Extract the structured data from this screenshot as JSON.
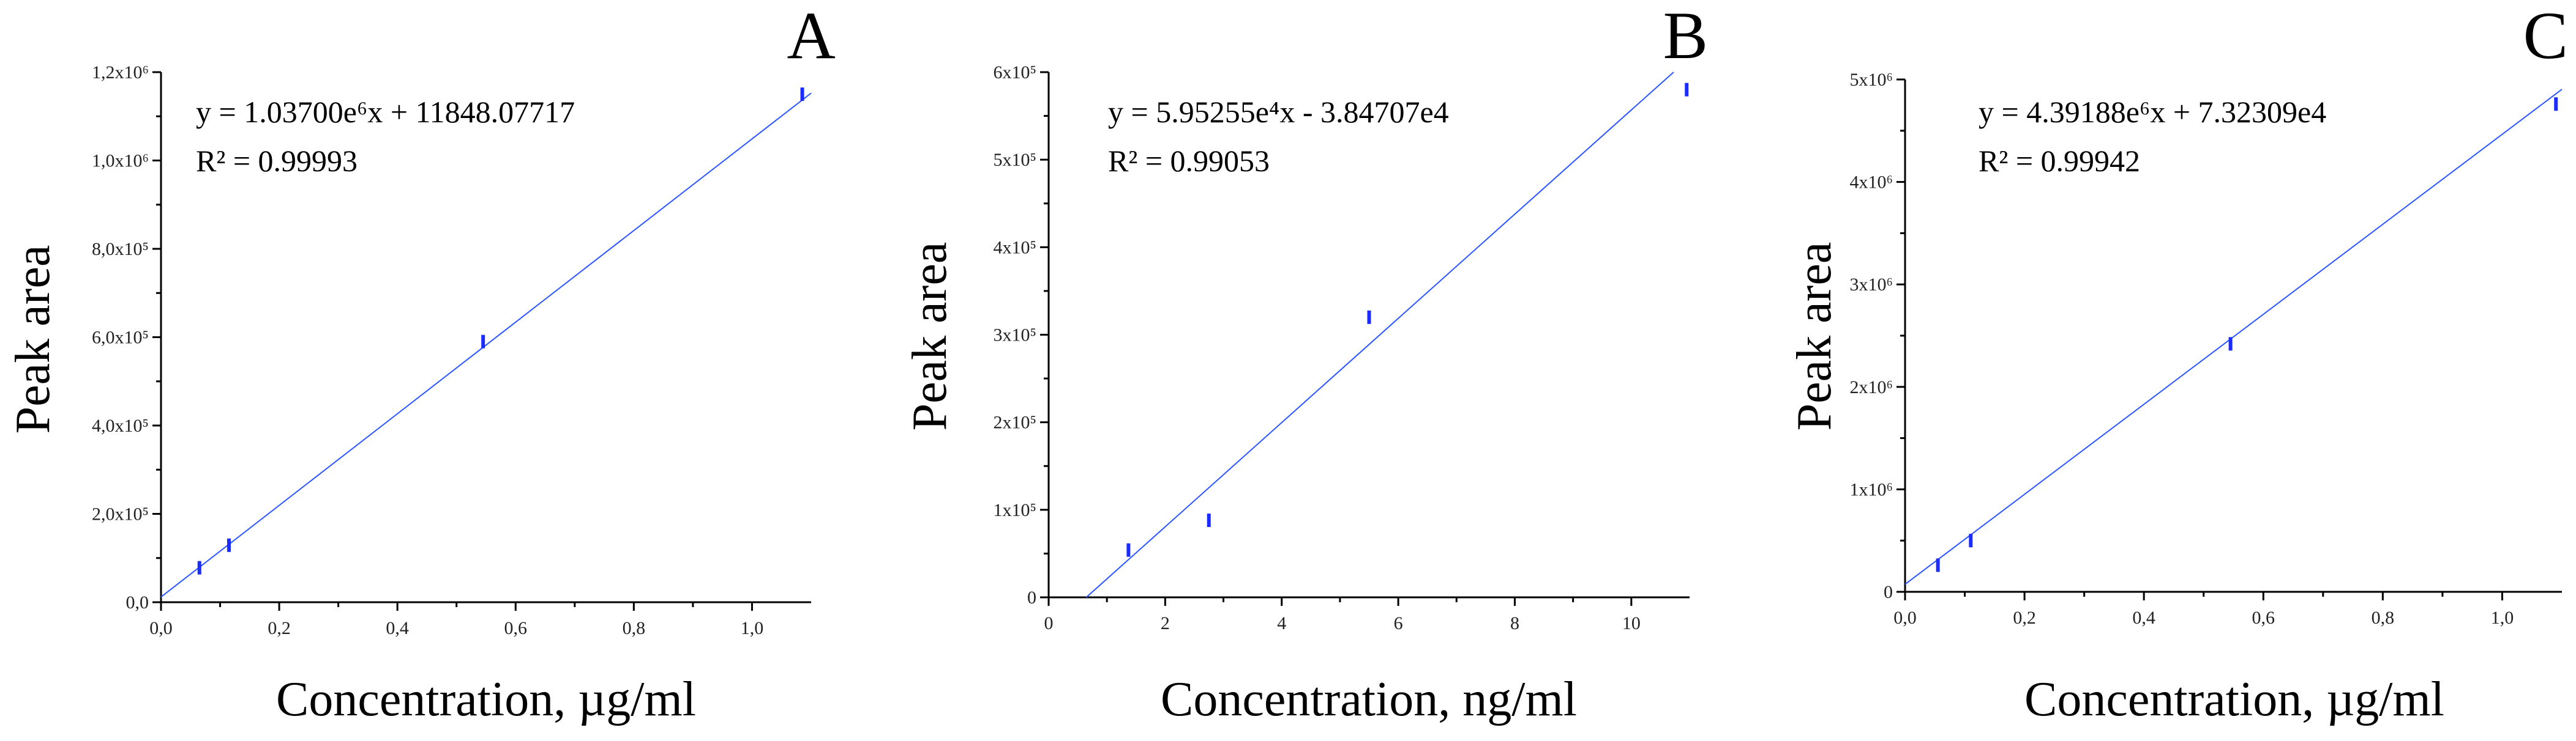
{
  "chart_data": [
    {
      "type": "scatter",
      "panel_label": "A",
      "equation": "y = 1.03700e⁶x + 11848.07717",
      "r_squared": "R² = 0.99993",
      "xlabel": "Concentration, µg/ml",
      "ylabel": "Peak area",
      "xlim": [
        0,
        1.1
      ],
      "ylim": [
        0,
        1200000
      ],
      "x_ticks": [
        0,
        0.2,
        0.4,
        0.6,
        0.8,
        1.0
      ],
      "x_tick_labels": [
        "0,0",
        "0,2",
        "0,4",
        "0,6",
        "0,8",
        "1,0"
      ],
      "y_ticks": [
        0,
        200000,
        400000,
        600000,
        800000,
        1000000,
        1200000
      ],
      "y_tick_labels": [
        "0,0",
        "2,0x10⁵",
        "4,0x10⁵",
        "6,0x10⁵",
        "8,0x10⁵",
        "1,0x10⁶",
        "1,2x10⁶"
      ],
      "fit": {
        "slope": 1037000,
        "intercept": 11848.07717
      },
      "points": [
        {
          "x": 0.065,
          "y": 78000
        },
        {
          "x": 0.115,
          "y": 129000
        },
        {
          "x": 0.545,
          "y": 590000
        },
        {
          "x": 1.085,
          "y": 1150000
        }
      ],
      "grid": false
    },
    {
      "type": "scatter",
      "panel_label": "B",
      "equation": "y = 5.95255e⁴x - 3.84707e4",
      "r_squared": "R² = 0.99053",
      "xlabel": "Concentration, ng/ml",
      "ylabel": "Peak area",
      "xlim": [
        0,
        11
      ],
      "ylim": [
        0,
        600000
      ],
      "x_ticks": [
        0,
        2,
        4,
        6,
        8,
        10
      ],
      "x_tick_labels": [
        "0",
        "2",
        "4",
        "6",
        "8",
        "10"
      ],
      "y_ticks": [
        0,
        100000,
        200000,
        300000,
        400000,
        500000,
        600000
      ],
      "y_tick_labels": [
        "0",
        "1x10⁵",
        "2x10⁵",
        "3x10⁵",
        "4x10⁵",
        "5x10⁵",
        "6x10⁵"
      ],
      "fit": {
        "slope": 59525.5,
        "intercept": -38470.7
      },
      "points": [
        {
          "x": 1.37,
          "y": 54000
        },
        {
          "x": 2.75,
          "y": 88000
        },
        {
          "x": 5.5,
          "y": 320000
        },
        {
          "x": 10.95,
          "y": 580000
        }
      ],
      "grid": false
    },
    {
      "type": "scatter",
      "panel_label": "C",
      "equation": "y = 4.39188e⁶x + 7.32309e4",
      "r_squared": "R² = 0.99942",
      "xlabel": "Concentration, µg/ml",
      "ylabel": "Peak area",
      "xlim": [
        0,
        1.1
      ],
      "ylim": [
        0,
        5000000
      ],
      "x_ticks": [
        0,
        0.2,
        0.4,
        0.6,
        0.8,
        1.0
      ],
      "x_tick_labels": [
        "0,0",
        "0,2",
        "0,4",
        "0,6",
        "0,8",
        "1,0"
      ],
      "y_ticks": [
        0,
        1000000,
        2000000,
        3000000,
        4000000,
        5000000
      ],
      "y_tick_labels": [
        "0",
        "1x10⁶",
        "2x10⁶",
        "3x10⁶",
        "4x10⁶",
        "5x10⁶"
      ],
      "fit": {
        "slope": 4391880,
        "intercept": 73230.9
      },
      "points": [
        {
          "x": 0.055,
          "y": 260000
        },
        {
          "x": 0.11,
          "y": 500000
        },
        {
          "x": 0.545,
          "y": 2420000
        },
        {
          "x": 1.09,
          "y": 4760000
        }
      ],
      "grid": false
    }
  ]
}
